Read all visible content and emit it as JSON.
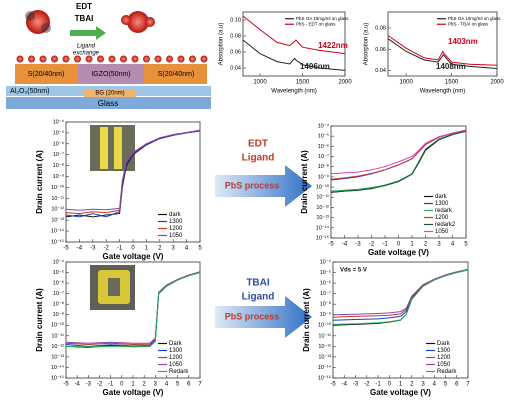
{
  "diagram": {
    "ligands": [
      "EDT",
      "TBAI"
    ],
    "exchange": [
      "Ligand",
      "exchange"
    ],
    "source": "S(20/40nm)",
    "channel": "IGZO(50nm)",
    "drain": "S(20/40nm)",
    "dielectric": "Al₂O₃(50nm)",
    "gate": "BG (20nm)",
    "substrate": "Glass"
  },
  "process_labels": [
    {
      "ligand": [
        "EDT",
        "Ligand"
      ],
      "process": "PbS process"
    },
    {
      "ligand": [
        "TBAI",
        "Ligand"
      ],
      "process": "PbS process"
    }
  ],
  "chart_data": [
    {
      "type": "line",
      "xlabel": "Wavelength (nm)",
      "ylabel": "Absorption (a.u)",
      "legend": "upper right",
      "x": [
        800,
        1000,
        1200,
        1350,
        1406,
        1422,
        1500,
        1700,
        2000
      ],
      "xlim": [
        800,
        2000
      ],
      "xticks": [
        1000,
        1500,
        2000
      ],
      "ylim": [
        0.03,
        0.11
      ],
      "yticks": [
        0.04,
        0.06,
        0.08,
        {
          "value": 0.1,
          "label": "0.10"
        }
      ],
      "series": [
        {
          "name": "PbS OA 10mg/ml on glass",
          "color": "#222222",
          "values": [
            0.075,
            0.058,
            0.048,
            0.045,
            0.052,
            0.05,
            0.044,
            0.04,
            0.037
          ]
        },
        {
          "name": "PbS - EDT on glass",
          "color": "#d0021b",
          "values": [
            0.105,
            0.088,
            0.072,
            0.068,
            0.073,
            0.075,
            0.066,
            0.062,
            0.058
          ]
        }
      ],
      "annotations": [
        {
          "text": "1422nm",
          "color": "#d0021b"
        },
        {
          "text": "1406nm",
          "color": "#222222"
        }
      ]
    },
    {
      "type": "line",
      "xlabel": "Wavelength (nm)",
      "ylabel": "Absorption (a.u)",
      "legend": "upper right",
      "x": [
        800,
        1000,
        1200,
        1350,
        1403,
        1408,
        1500,
        1700,
        2000
      ],
      "xlim": [
        800,
        2000
      ],
      "xticks": [
        1000,
        1500,
        2000
      ],
      "ylim": [
        0.035,
        0.095
      ],
      "yticks": [
        0.04,
        0.06,
        0.08
      ],
      "series": [
        {
          "name": "PbS OA 10mg/ml on glass",
          "color": "#222222",
          "values": [
            0.07,
            0.058,
            0.05,
            0.048,
            0.054,
            0.055,
            0.046,
            0.044,
            0.042
          ]
        },
        {
          "name": "PbS - TBAI on glass",
          "color": "#d0021b",
          "values": [
            0.073,
            0.061,
            0.052,
            0.05,
            0.058,
            0.057,
            0.048,
            0.046,
            0.045
          ]
        }
      ],
      "annotations": [
        {
          "text": "1403nm",
          "color": "#d0021b"
        },
        {
          "text": "1408nm",
          "color": "#222222"
        }
      ]
    },
    {
      "type": "line",
      "xlabel": "Gate voltage (V)",
      "ylabel": "Drain current (A)",
      "log_y": true,
      "legend": "lower right",
      "x": [
        -5,
        -4,
        -3,
        -2,
        -1,
        -0.8,
        -0.5,
        0,
        1,
        2,
        3,
        4,
        5
      ],
      "xlim": [
        -5,
        5
      ],
      "xticks": [
        -5,
        -4,
        -3,
        -2,
        -1,
        0,
        1,
        2,
        3,
        4,
        5
      ],
      "ylim": [
        1e-15,
        0.0001
      ],
      "yticks": [
        {
          "value": 1e-15,
          "label": "10⁻¹⁵"
        },
        {
          "value": 1e-14,
          "label": "10⁻¹⁴"
        },
        {
          "value": 1e-13,
          "label": "10⁻¹³"
        },
        {
          "value": 1e-12,
          "label": "10⁻¹²"
        },
        {
          "value": 1e-11,
          "label": "10⁻¹¹"
        },
        {
          "value": 1e-10,
          "label": "10⁻¹⁰"
        },
        {
          "value": 1e-09,
          "label": "10⁻⁹"
        },
        {
          "value": 1e-08,
          "label": "10⁻⁸"
        },
        {
          "value": 1e-07,
          "label": "10⁻⁷"
        },
        {
          "value": 1e-06,
          "label": "10⁻⁶"
        },
        {
          "value": 1e-05,
          "label": "10⁻⁵"
        },
        {
          "value": 0.0001,
          "label": "10⁻⁴"
        }
      ],
      "series": [
        {
          "name": "dark",
          "color": "#111111",
          "values": [
            2e-13,
            3e-13,
            2e-13,
            3e-13,
            4e-13,
            1e-10,
            1e-08,
            1e-07,
            8e-07,
            3e-06,
            6e-06,
            1e-05,
            1.5e-05
          ]
        },
        {
          "name": "1300",
          "color": "#1f3fbf",
          "values": [
            3e-13,
            2e-13,
            4e-13,
            2e-13,
            6e-13,
            2e-10,
            1.5e-08,
            1.2e-07,
            9e-07,
            3e-06,
            6e-06,
            1e-05,
            1.6e-05
          ]
        },
        {
          "name": "1200",
          "color": "#c0392b",
          "values": [
            5e-13,
            4e-13,
            6e-13,
            5e-13,
            8e-13,
            3e-10,
            2e-08,
            1.5e-07,
            1e-06,
            3.5e-06,
            7e-06,
            1.1e-05,
            1.7e-05
          ]
        },
        {
          "name": "1050",
          "color": "#8e44ad",
          "values": [
            1e-12,
            8e-13,
            1e-12,
            9e-13,
            1.2e-12,
            4e-10,
            2.5e-08,
            1.6e-07,
            1e-06,
            3.5e-06,
            7e-06,
            1.1e-05,
            1.8e-05
          ]
        }
      ]
    },
    {
      "type": "line",
      "xlabel": "Gate voltage (V)",
      "ylabel": "Drain current (A)",
      "log_y": true,
      "legend": "lower right",
      "x": [
        -5,
        -4,
        -3,
        -2,
        -1,
        0,
        1,
        1.5,
        2,
        3,
        4,
        5
      ],
      "xlim": [
        -5,
        5
      ],
      "xticks": [
        -5,
        -4,
        -3,
        -2,
        -1,
        0,
        1,
        2,
        3,
        4,
        5
      ],
      "ylim": [
        1e-15,
        0.0001
      ],
      "yticks": [
        {
          "value": 1e-15,
          "label": "10⁻¹⁵"
        },
        {
          "value": 1e-14,
          "label": "10⁻¹⁴"
        },
        {
          "value": 1e-13,
          "label": "10⁻¹³"
        },
        {
          "value": 1e-12,
          "label": "10⁻¹²"
        },
        {
          "value": 1e-11,
          "label": "10⁻¹¹"
        },
        {
          "value": 1e-10,
          "label": "10⁻¹⁰"
        },
        {
          "value": 1e-09,
          "label": "10⁻⁹"
        },
        {
          "value": 1e-08,
          "label": "10⁻⁸"
        },
        {
          "value": 1e-07,
          "label": "10⁻⁷"
        },
        {
          "value": 1e-06,
          "label": "10⁻⁶"
        },
        {
          "value": 1e-05,
          "label": "10⁻⁵"
        },
        {
          "value": 0.0001,
          "label": "10⁻⁴"
        }
      ],
      "series": [
        {
          "name": "dark",
          "color": "#111111",
          "values": [
            3e-11,
            4e-11,
            5e-11,
            8e-11,
            1.5e-10,
            4e-10,
            2e-09,
            3e-08,
            5e-07,
            5e-06,
            1.5e-05,
            3e-05
          ]
        },
        {
          "name": "1300",
          "color": "#1f3fbf",
          "values": [
            5e-10,
            7e-10,
            1e-09,
            2e-09,
            5e-09,
            1.5e-08,
            6e-08,
            3e-07,
            1.5e-06,
            8e-06,
            2e-05,
            4e-05
          ]
        },
        {
          "name": "redark",
          "color": "#27ae60",
          "values": [
            4e-11,
            5e-11,
            6e-11,
            9e-11,
            1.6e-10,
            4e-10,
            2e-09,
            2.5e-08,
            4e-07,
            4.5e-06,
            1.4e-05,
            3e-05
          ]
        },
        {
          "name": "1200",
          "color": "#c0392b",
          "values": [
            6e-10,
            8e-10,
            1.2e-09,
            2.2e-09,
            5e-09,
            1.5e-08,
            6e-08,
            3e-07,
            1.5e-06,
            8e-06,
            2e-05,
            4e-05
          ]
        },
        {
          "name": "redark2",
          "color": "#145a32",
          "values": [
            3e-11,
            4e-11,
            5e-11,
            7e-11,
            1.4e-10,
            3.5e-10,
            1.8e-09,
            2.5e-08,
            4e-07,
            4.5e-06,
            1.4e-05,
            3e-05
          ]
        },
        {
          "name": "1050",
          "color": "#e040c0",
          "values": [
            2e-09,
            2.5e-09,
            3e-09,
            5e-09,
            1e-08,
            3e-08,
            1e-07,
            4e-07,
            2e-06,
            9e-06,
            2e-05,
            4e-05
          ]
        }
      ]
    },
    {
      "type": "line",
      "xlabel": "Gate voltage (V)",
      "ylabel": "Drain current (A)",
      "log_y": true,
      "legend": "lower right",
      "x": [
        -5,
        -3,
        -1,
        1,
        2.5,
        3,
        3.3,
        4,
        5,
        6,
        7
      ],
      "xlim": [
        -5,
        7
      ],
      "xticks": [
        -5,
        -4,
        -3,
        -2,
        -1,
        0,
        1,
        2,
        3,
        4,
        5,
        6,
        7
      ],
      "ylim": [
        1e-15,
        0.0001
      ],
      "yticks": [
        {
          "value": 1e-15,
          "label": "10⁻¹⁵"
        },
        {
          "value": 1e-14,
          "label": "10⁻¹⁴"
        },
        {
          "value": 1e-13,
          "label": "10⁻¹³"
        },
        {
          "value": 1e-12,
          "label": "10⁻¹²"
        },
        {
          "value": 1e-11,
          "label": "10⁻¹¹"
        },
        {
          "value": 1e-10,
          "label": "10⁻¹⁰"
        },
        {
          "value": 1e-09,
          "label": "10⁻⁹"
        },
        {
          "value": 1e-08,
          "label": "10⁻⁸"
        },
        {
          "value": 1e-07,
          "label": "10⁻⁷"
        },
        {
          "value": 1e-06,
          "label": "10⁻⁶"
        },
        {
          "value": 1e-05,
          "label": "10⁻⁵"
        },
        {
          "value": 0.0001,
          "label": "10⁻⁴"
        }
      ],
      "series": [
        {
          "name": "Dark",
          "color": "#111111",
          "values": [
            1e-12,
            8e-13,
            1.2e-12,
            9e-13,
            1e-12,
            3e-12,
            1e-07,
            5e-07,
            2e-06,
            5e-06,
            1e-05
          ]
        },
        {
          "name": "1300",
          "color": "#1f3fbf",
          "values": [
            1.5e-12,
            1e-12,
            1.4e-12,
            1.1e-12,
            1.2e-12,
            4e-12,
            1.2e-07,
            6e-07,
            2.2e-06,
            5.5e-06,
            1.1e-05
          ]
        },
        {
          "name": "1200",
          "color": "#c0392b",
          "values": [
            2e-12,
            1.5e-12,
            2e-12,
            1.5e-12,
            1.6e-12,
            5e-12,
            1.3e-07,
            6e-07,
            2.2e-06,
            5.5e-06,
            1.1e-05
          ]
        },
        {
          "name": "1050",
          "color": "#8e44ad",
          "values": [
            2.5e-12,
            2e-12,
            2.5e-12,
            2e-12,
            2e-12,
            6e-12,
            1.4e-07,
            6.5e-07,
            2.3e-06,
            5.8e-06,
            1.2e-05
          ]
        },
        {
          "name": "Redark",
          "color": "#27ae60",
          "values": [
            1e-12,
            9e-13,
            1e-12,
            1e-12,
            1e-12,
            3e-12,
            1e-07,
            5e-07,
            2e-06,
            5e-06,
            1e-05
          ]
        }
      ]
    },
    {
      "type": "line",
      "xlabel": "Gate voltage (V)",
      "ylabel": "Drain current (A)",
      "log_y": true,
      "legend": "lower right",
      "x": [
        -5,
        -3,
        -1,
        0,
        1,
        1.5,
        2,
        3,
        4,
        5,
        6,
        7
      ],
      "xlim": [
        -5,
        7
      ],
      "xticks": [
        -5,
        -4,
        -3,
        -2,
        -1,
        0,
        1,
        2,
        3,
        4,
        5,
        6,
        7
      ],
      "ylim": [
        1e-15,
        0.0001
      ],
      "yticks": [
        {
          "value": 1e-15,
          "label": "10⁻¹⁵"
        },
        {
          "value": 1e-14,
          "label": "10⁻¹⁴"
        },
        {
          "value": 1e-13,
          "label": "10⁻¹³"
        },
        {
          "value": 1e-12,
          "label": "10⁻¹²"
        },
        {
          "value": 1e-11,
          "label": "10⁻¹¹"
        },
        {
          "value": 1e-10,
          "label": "10⁻¹⁰"
        },
        {
          "value": 1e-09,
          "label": "10⁻⁹"
        },
        {
          "value": 1e-08,
          "label": "10⁻⁸"
        },
        {
          "value": 1e-07,
          "label": "10⁻⁷"
        },
        {
          "value": 1e-06,
          "label": "10⁻⁶"
        },
        {
          "value": 1e-05,
          "label": "10⁻⁵"
        },
        {
          "value": 0.0001,
          "label": "10⁻⁴"
        }
      ],
      "series": [
        {
          "name": "Dark",
          "color": "#111111",
          "values": [
            1e-10,
            1.2e-10,
            1.5e-10,
            2e-10,
            3e-10,
            1e-09,
            3e-08,
            5e-07,
            2e-06,
            5e-06,
            1e-05,
            1.8e-05
          ]
        },
        {
          "name": "1300",
          "color": "#1f3fbf",
          "values": [
            3e-10,
            3.5e-10,
            4e-10,
            5e-10,
            7e-10,
            2e-09,
            4e-08,
            6e-07,
            2.2e-06,
            5.5e-06,
            1.1e-05,
            1.9e-05
          ]
        },
        {
          "name": "1200",
          "color": "#c0392b",
          "values": [
            6e-10,
            7e-10,
            8e-10,
            9e-10,
            1.2e-09,
            3e-09,
            5e-08,
            6e-07,
            2.3e-06,
            5.5e-06,
            1.1e-05,
            2e-05
          ]
        },
        {
          "name": "1050",
          "color": "#8e44ad",
          "values": [
            1e-09,
            1.1e-09,
            1.3e-09,
            1.5e-09,
            2e-09,
            4e-09,
            6e-08,
            7e-07,
            2.4e-06,
            6e-06,
            1.2e-05,
            2e-05
          ]
        },
        {
          "name": "Redark",
          "color": "#27ae60",
          "values": [
            1.2e-10,
            1.4e-10,
            1.7e-10,
            2.2e-10,
            3.2e-10,
            1e-09,
            3e-08,
            5e-07,
            2e-06,
            5e-06,
            1e-05,
            1.8e-05
          ]
        }
      ],
      "annotations": [
        {
          "text": "Vds = 5 V",
          "color": "#111111"
        }
      ]
    }
  ]
}
